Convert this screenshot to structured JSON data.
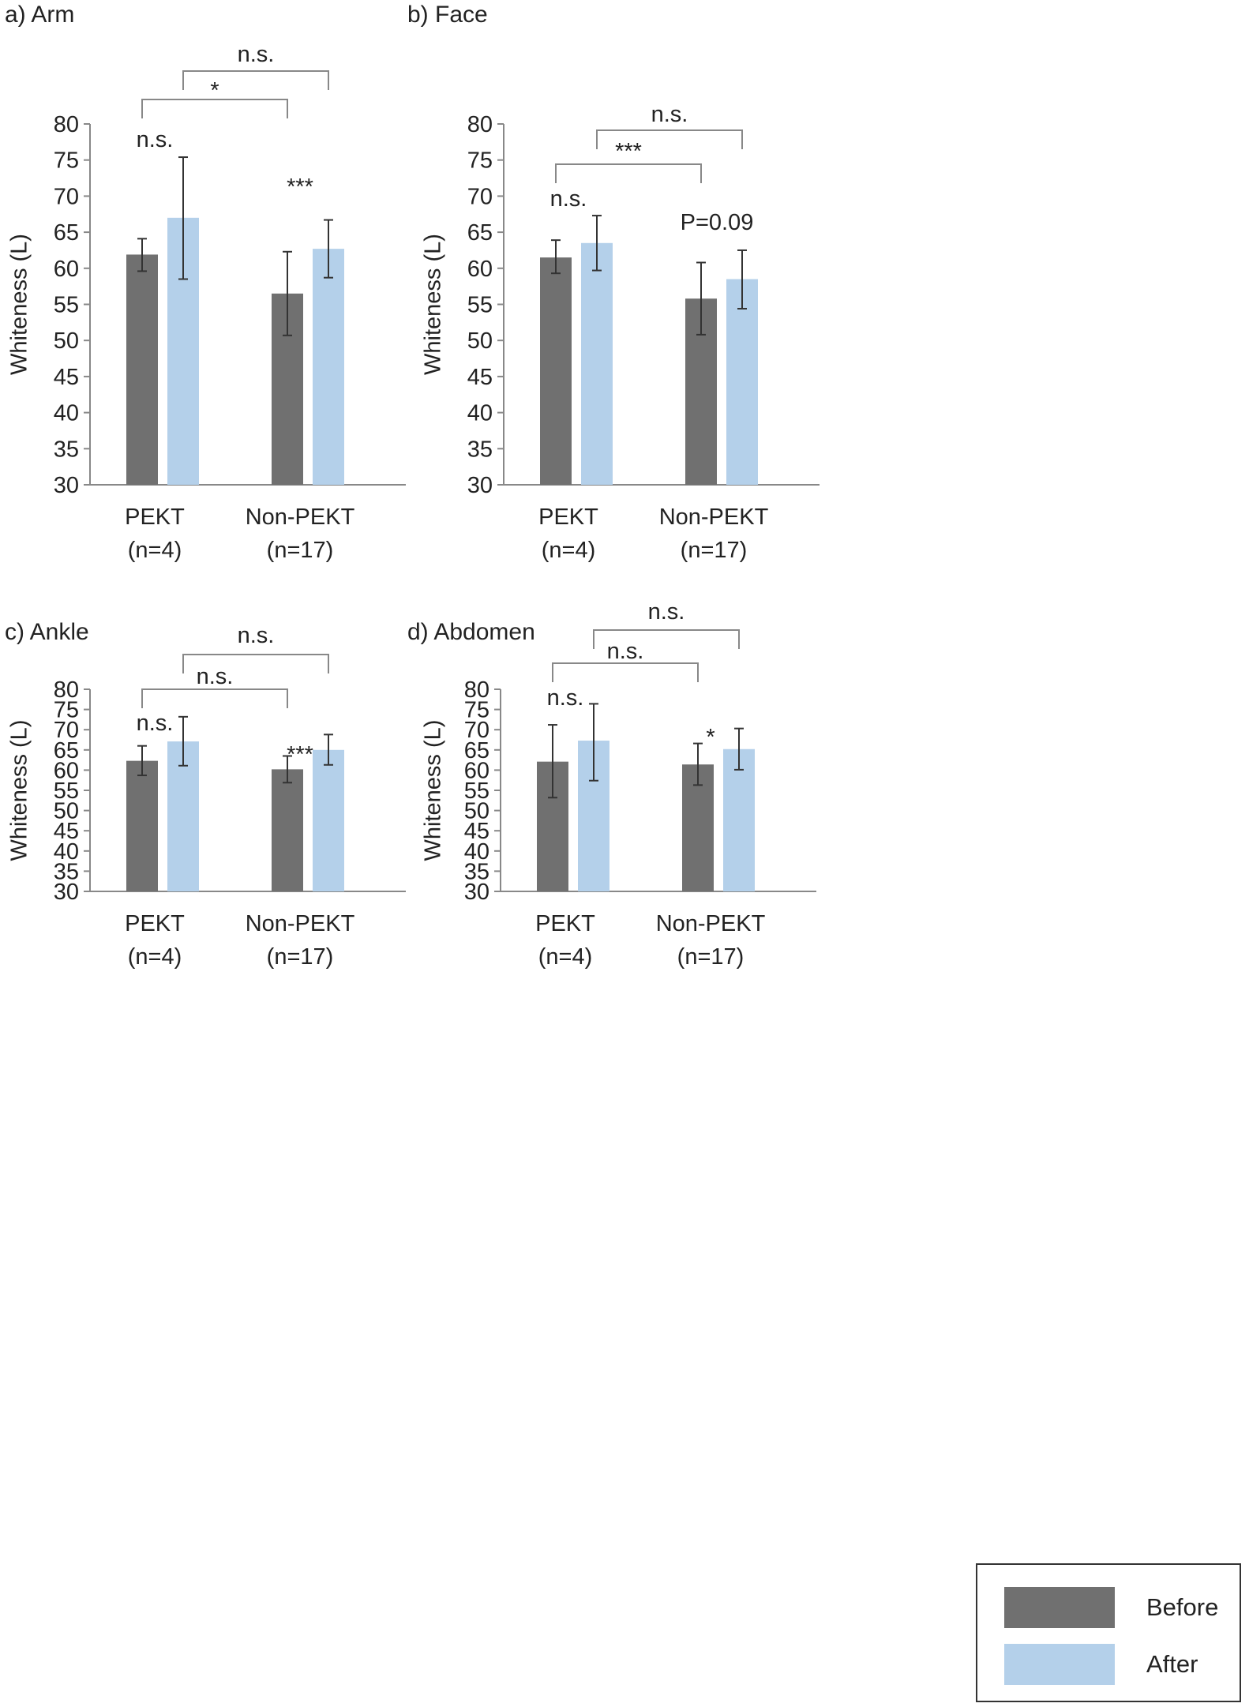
{
  "colors": {
    "before": "#707070",
    "after": "#b4d0ea"
  },
  "legend": {
    "before_label": "Before",
    "after_label": "After"
  },
  "chart_data": [
    {
      "type": "bar",
      "title": "a) Arm",
      "ylabel": "Whiteness (L)",
      "ylim": [
        30,
        80
      ],
      "yticks": [
        30,
        35,
        40,
        45,
        50,
        55,
        60,
        65,
        70,
        75,
        80
      ],
      "categories": [
        {
          "name": "PEKT",
          "n": "(n=4)"
        },
        {
          "name": "Non-PEKT",
          "n": "(n=17)"
        }
      ],
      "series": [
        {
          "name": "Before",
          "values": [
            61.9,
            56.5
          ],
          "err_low": [
            59.6,
            50.7
          ],
          "err_high": [
            64.1,
            62.3
          ]
        },
        {
          "name": "After",
          "values": [
            67.0,
            62.7
          ],
          "err_low": [
            58.5,
            58.7
          ],
          "err_high": [
            75.4,
            66.7
          ]
        }
      ],
      "within_annotations": [
        "n.s.",
        "***"
      ],
      "brackets": [
        {
          "from": "PEKT Before",
          "to": "Non-PEKT Before",
          "label": "*"
        },
        {
          "from": "PEKT After",
          "to": "Non-PEKT After",
          "label": "n.s."
        }
      ]
    },
    {
      "type": "bar",
      "title": "b) Face",
      "ylabel": "Whiteness (L)",
      "ylim": [
        30,
        80
      ],
      "yticks": [
        30,
        35,
        40,
        45,
        50,
        55,
        60,
        65,
        70,
        75,
        80
      ],
      "categories": [
        {
          "name": "PEKT",
          "n": "(n=4)"
        },
        {
          "name": "Non-PEKT",
          "n": "(n=17)"
        }
      ],
      "series": [
        {
          "name": "Before",
          "values": [
            61.5,
            55.8
          ],
          "err_low": [
            59.3,
            50.8
          ],
          "err_high": [
            63.9,
            60.8
          ]
        },
        {
          "name": "After",
          "values": [
            63.5,
            58.5
          ],
          "err_low": [
            59.7,
            54.4
          ],
          "err_high": [
            67.3,
            62.5
          ]
        }
      ],
      "within_annotations": [
        "n.s.",
        "P=0.09"
      ],
      "brackets": [
        {
          "from": "PEKT Before",
          "to": "Non-PEKT Before",
          "label": "***"
        },
        {
          "from": "PEKT After",
          "to": "Non-PEKT After",
          "label": "n.s."
        }
      ]
    },
    {
      "type": "bar",
      "title": "c) Ankle",
      "ylabel": "Whiteness (L)",
      "ylim": [
        30,
        80
      ],
      "yticks": [
        30,
        35,
        40,
        45,
        50,
        55,
        60,
        65,
        70,
        75,
        80
      ],
      "categories": [
        {
          "name": "PEKT",
          "n": "(n=4)"
        },
        {
          "name": "Non-PEKT",
          "n": "(n=17)"
        }
      ],
      "series": [
        {
          "name": "Before",
          "values": [
            62.3,
            60.2
          ],
          "err_low": [
            58.7,
            56.9
          ],
          "err_high": [
            66.0,
            63.5
          ]
        },
        {
          "name": "After",
          "values": [
            67.1,
            65.0
          ],
          "err_low": [
            61.1,
            61.3
          ],
          "err_high": [
            73.2,
            68.8
          ]
        }
      ],
      "within_annotations": [
        "n.s.",
        "***"
      ],
      "brackets": [
        {
          "from": "PEKT Before",
          "to": "Non-PEKT Before",
          "label": "n.s."
        },
        {
          "from": "PEKT After",
          "to": "Non-PEKT After",
          "label": "n.s."
        }
      ]
    },
    {
      "type": "bar",
      "title": "d) Abdomen",
      "ylabel": "Whiteness (L)",
      "ylim": [
        30,
        80
      ],
      "yticks": [
        30,
        35,
        40,
        45,
        50,
        55,
        60,
        65,
        70,
        75,
        80
      ],
      "categories": [
        {
          "name": "PEKT",
          "n": "(n=4)"
        },
        {
          "name": "Non-PEKT",
          "n": "(n=17)"
        }
      ],
      "series": [
        {
          "name": "Before",
          "values": [
            62.1,
            61.4
          ],
          "err_low": [
            53.2,
            56.3
          ],
          "err_high": [
            71.2,
            66.6
          ]
        },
        {
          "name": "After",
          "values": [
            67.3,
            65.2
          ],
          "err_low": [
            57.4,
            60.1
          ],
          "err_high": [
            76.4,
            70.3
          ]
        }
      ],
      "within_annotations": [
        "n.s.",
        "*"
      ],
      "brackets": [
        {
          "from": "PEKT Before",
          "to": "Non-PEKT Before",
          "label": "n.s."
        },
        {
          "from": "PEKT After",
          "to": "Non-PEKT After",
          "label": "n.s."
        }
      ]
    }
  ]
}
